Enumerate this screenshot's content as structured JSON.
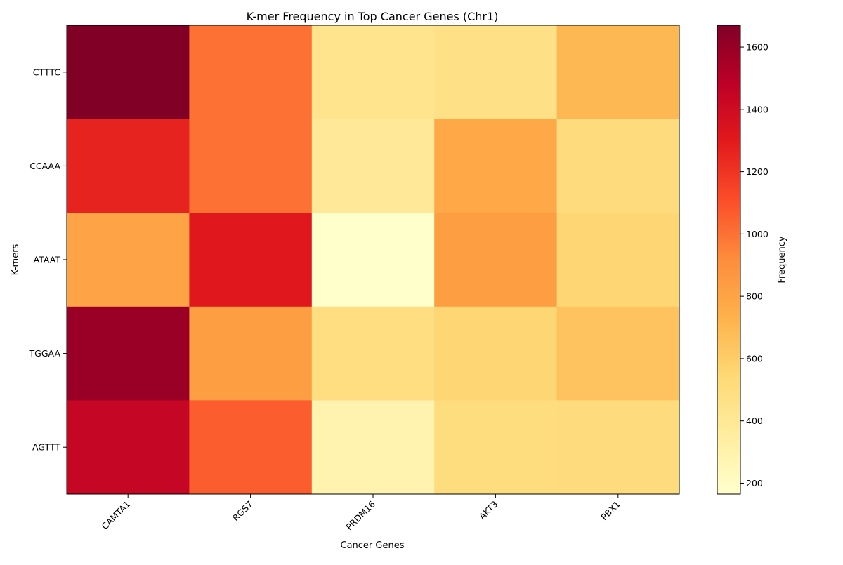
{
  "chart_data": {
    "type": "heatmap",
    "title": "K-mer Frequency in Top Cancer Genes (Chr1)",
    "xlabel": "Cancer Genes",
    "ylabel": "K-mers",
    "x_categories": [
      "CAMTA1",
      "RGS7",
      "PRDM16",
      "AKT3",
      "PBX1"
    ],
    "y_categories": [
      "CTTTC",
      "CCAAA",
      "ATAAT",
      "TGGAA",
      "AGTTT"
    ],
    "values": [
      [
        1670,
        1000,
        440,
        470,
        700
      ],
      [
        1260,
        1000,
        390,
        780,
        510
      ],
      [
        800,
        1310,
        165,
        830,
        550
      ],
      [
        1590,
        830,
        490,
        550,
        650
      ],
      [
        1440,
        1060,
        290,
        500,
        510
      ]
    ],
    "colorbar": {
      "label": "Frequency",
      "range": [
        165,
        1670
      ],
      "ticks": [
        200,
        400,
        600,
        800,
        1000,
        1200,
        1400,
        1600
      ],
      "colormap": "YlOrRd"
    }
  }
}
